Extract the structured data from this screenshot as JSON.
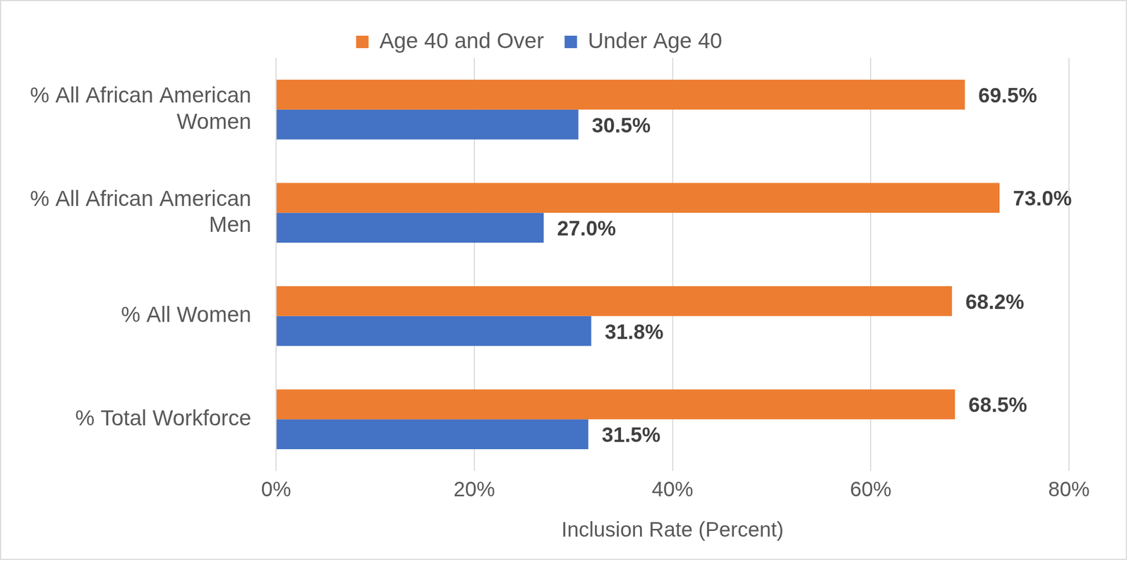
{
  "chart_data": {
    "type": "bar",
    "orientation": "horizontal",
    "categories": [
      "% All African American Women",
      "% All African American Men",
      "% All Women",
      "% Total Workforce"
    ],
    "series": [
      {
        "name": "Age 40 and Over",
        "color": "#ed7d31",
        "values": [
          69.5,
          73.0,
          68.2,
          68.5
        ],
        "value_labels": [
          "69.5%",
          "73.0%",
          "68.2%",
          "68.5%"
        ]
      },
      {
        "name": "Under Age 40",
        "color": "#4472c4",
        "values": [
          30.5,
          27.0,
          31.8,
          31.5
        ],
        "value_labels": [
          "30.5%",
          "27.0%",
          "31.8%",
          "31.5%"
        ]
      }
    ],
    "xlabel": "Inclusion Rate (Percent)",
    "xlim": [
      0,
      80
    ],
    "xticks": [
      {
        "value": 0,
        "label": "0%"
      },
      {
        "value": 20,
        "label": "20%"
      },
      {
        "value": 40,
        "label": "40%"
      },
      {
        "value": 60,
        "label": "60%"
      },
      {
        "value": 80,
        "label": "80%"
      }
    ],
    "grid": true,
    "legend": "top",
    "data_labels": true
  }
}
